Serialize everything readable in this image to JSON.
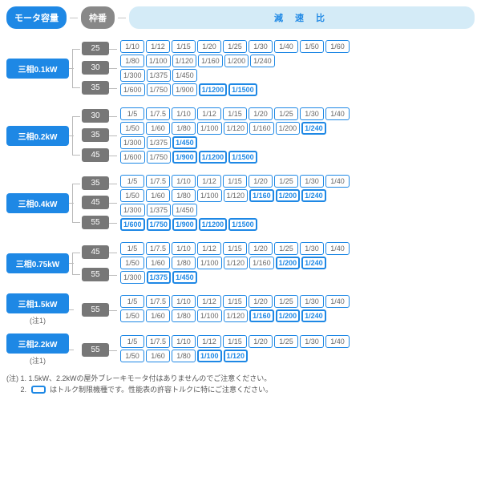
{
  "colors": {
    "primary": "#1e88e5",
    "frame": "#777",
    "headerBg": "#d4ebf7",
    "conn": "#bbb"
  },
  "header": {
    "left": "モータ容量",
    "mid": "枠番",
    "right": "減 速 比"
  },
  "groups": [
    {
      "motor": "三相0.1kW",
      "note": "",
      "frames": [
        {
          "n": "25",
          "rows": [
            [
              {
                "v": "1/10"
              },
              {
                "v": "1/12"
              },
              {
                "v": "1/15"
              },
              {
                "v": "1/20"
              },
              {
                "v": "1/25"
              },
              {
                "v": "1/30"
              },
              {
                "v": "1/40"
              },
              {
                "v": "1/50"
              },
              {
                "v": "1/60"
              }
            ],
            [
              {
                "v": "1/80"
              },
              {
                "v": "1/100"
              },
              {
                "v": "1/120"
              },
              {
                "v": "1/160"
              },
              {
                "v": "1/200"
              },
              {
                "v": "1/240"
              }
            ]
          ]
        },
        {
          "n": "30",
          "rows": [
            [
              {
                "v": "1/300"
              },
              {
                "v": "1/375"
              },
              {
                "v": "1/450"
              }
            ]
          ]
        },
        {
          "n": "35",
          "rows": [
            [
              {
                "v": "1/600"
              },
              {
                "v": "1/750"
              },
              {
                "v": "1/900"
              },
              {
                "v": "1/1200",
                "hl": 1
              },
              {
                "v": "1/1500",
                "hl": 1
              }
            ]
          ]
        }
      ]
    },
    {
      "motor": "三相0.2kW",
      "note": "",
      "frames": [
        {
          "n": "30",
          "rows": [
            [
              {
                "v": "1/5"
              },
              {
                "v": "1/7.5"
              },
              {
                "v": "1/10"
              },
              {
                "v": "1/12"
              },
              {
                "v": "1/15"
              },
              {
                "v": "1/20"
              },
              {
                "v": "1/25"
              },
              {
                "v": "1/30"
              },
              {
                "v": "1/40"
              }
            ],
            [
              {
                "v": "1/50"
              },
              {
                "v": "1/60"
              },
              {
                "v": "1/80"
              },
              {
                "v": "1/100"
              },
              {
                "v": "1/120"
              },
              {
                "v": "1/160"
              },
              {
                "v": "1/200"
              },
              {
                "v": "1/240",
                "hl": 1
              }
            ]
          ]
        },
        {
          "n": "35",
          "rows": [
            [
              {
                "v": "1/300"
              },
              {
                "v": "1/375"
              },
              {
                "v": "1/450",
                "hl": 1
              }
            ]
          ]
        },
        {
          "n": "45",
          "rows": [
            [
              {
                "v": "1/600"
              },
              {
                "v": "1/750"
              },
              {
                "v": "1/900",
                "hl": 1
              },
              {
                "v": "1/1200",
                "hl": 1
              },
              {
                "v": "1/1500",
                "hl": 1
              }
            ]
          ]
        }
      ]
    },
    {
      "motor": "三相0.4kW",
      "note": "",
      "frames": [
        {
          "n": "35",
          "rows": [
            [
              {
                "v": "1/5"
              },
              {
                "v": "1/7.5"
              },
              {
                "v": "1/10"
              },
              {
                "v": "1/12"
              },
              {
                "v": "1/15"
              },
              {
                "v": "1/20"
              },
              {
                "v": "1/25"
              },
              {
                "v": "1/30"
              },
              {
                "v": "1/40"
              }
            ],
            [
              {
                "v": "1/50"
              },
              {
                "v": "1/60"
              },
              {
                "v": "1/80"
              },
              {
                "v": "1/100"
              },
              {
                "v": "1/120"
              },
              {
                "v": "1/160",
                "hl": 1
              },
              {
                "v": "1/200",
                "hl": 1
              },
              {
                "v": "1/240",
                "hl": 1
              }
            ]
          ]
        },
        {
          "n": "45",
          "rows": [
            [
              {
                "v": "1/300"
              },
              {
                "v": "1/375"
              },
              {
                "v": "1/450"
              }
            ]
          ]
        },
        {
          "n": "55",
          "rows": [
            [
              {
                "v": "1/600",
                "hl": 1
              },
              {
                "v": "1/750",
                "hl": 1
              },
              {
                "v": "1/900",
                "hl": 1
              },
              {
                "v": "1/1200",
                "hl": 1
              },
              {
                "v": "1/1500",
                "hl": 1
              }
            ]
          ]
        }
      ]
    },
    {
      "motor": "三相0.75kW",
      "note": "",
      "frames": [
        {
          "n": "45",
          "rows": [
            [
              {
                "v": "1/5"
              },
              {
                "v": "1/7.5"
              },
              {
                "v": "1/10"
              },
              {
                "v": "1/12"
              },
              {
                "v": "1/15"
              },
              {
                "v": "1/20"
              },
              {
                "v": "1/25"
              },
              {
                "v": "1/30"
              },
              {
                "v": "1/40"
              }
            ],
            [
              {
                "v": "1/50"
              },
              {
                "v": "1/60"
              },
              {
                "v": "1/80"
              },
              {
                "v": "1/100"
              },
              {
                "v": "1/120"
              },
              {
                "v": "1/160"
              },
              {
                "v": "1/200",
                "hl": 1
              },
              {
                "v": "1/240",
                "hl": 1
              }
            ]
          ]
        },
        {
          "n": "55",
          "rows": [
            [
              {
                "v": "1/300"
              },
              {
                "v": "1/375",
                "hl": 1
              },
              {
                "v": "1/450",
                "hl": 1
              }
            ]
          ]
        }
      ]
    },
    {
      "motor": "三相1.5kW",
      "note": "(注1)",
      "frames": [
        {
          "n": "55",
          "rows": [
            [
              {
                "v": "1/5"
              },
              {
                "v": "1/7.5"
              },
              {
                "v": "1/10"
              },
              {
                "v": "1/12"
              },
              {
                "v": "1/15"
              },
              {
                "v": "1/20"
              },
              {
                "v": "1/25"
              },
              {
                "v": "1/30"
              },
              {
                "v": "1/40"
              }
            ],
            [
              {
                "v": "1/50"
              },
              {
                "v": "1/60"
              },
              {
                "v": "1/80"
              },
              {
                "v": "1/100"
              },
              {
                "v": "1/120"
              },
              {
                "v": "1/160",
                "hl": 1
              },
              {
                "v": "1/200",
                "hl": 1
              },
              {
                "v": "1/240",
                "hl": 1
              }
            ]
          ]
        }
      ]
    },
    {
      "motor": "三相2.2kW",
      "note": "(注1)",
      "frames": [
        {
          "n": "55",
          "rows": [
            [
              {
                "v": "1/5"
              },
              {
                "v": "1/7.5"
              },
              {
                "v": "1/10"
              },
              {
                "v": "1/12"
              },
              {
                "v": "1/15"
              },
              {
                "v": "1/20"
              },
              {
                "v": "1/25"
              },
              {
                "v": "1/30"
              },
              {
                "v": "1/40"
              }
            ],
            [
              {
                "v": "1/50"
              },
              {
                "v": "1/60"
              },
              {
                "v": "1/80"
              },
              {
                "v": "1/100",
                "hl": 1
              },
              {
                "v": "1/120",
                "hl": 1
              }
            ]
          ]
        }
      ]
    }
  ],
  "footer": {
    "line1": "(注) 1. 1.5kW、2.2kWの屋外ブレーキモータ付はありませんのでご注意ください。",
    "line2a": "2. ",
    "line2b": " はトルク制限機種です。性能表の許容トルクに特にご注意ください。"
  }
}
